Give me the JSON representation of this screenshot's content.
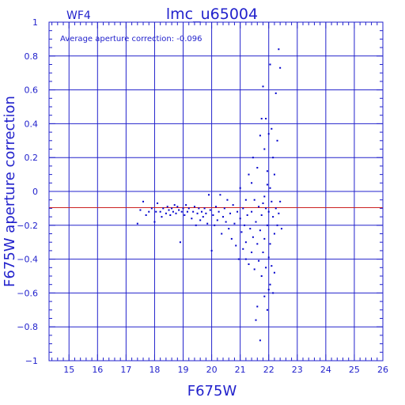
{
  "chart_data": {
    "type": "scatter",
    "title": "lmc_u65004",
    "subtitle": "WF4",
    "annotation": "Average aperture correction: -0.096",
    "xlabel": "F675W",
    "ylabel": "F675W aperture correction",
    "xlim": [
      14.3,
      26
    ],
    "ylim": [
      -1,
      1
    ],
    "xticks": [
      15,
      16,
      17,
      18,
      19,
      20,
      21,
      22,
      23,
      24,
      25,
      26
    ],
    "yticks": [
      1,
      0.8,
      0.6,
      0.4,
      0.2,
      0,
      -0.2,
      -0.4,
      -0.6,
      -0.8,
      -1
    ],
    "ytick_labels": [
      "1",
      "0.8",
      "0.6",
      "0.4",
      "0.2",
      "0",
      "−0.2",
      "−0.4",
      "−0.6",
      "−0.8",
      "−1"
    ],
    "grid": true,
    "reference_line": -0.096,
    "colors": {
      "axes": "#2222cc",
      "points": "#0000cc",
      "reference": "#cc2222"
    },
    "points": [
      [
        17.4,
        -0.19
      ],
      [
        17.5,
        -0.11
      ],
      [
        17.6,
        -0.06
      ],
      [
        17.7,
        -0.14
      ],
      [
        17.8,
        -0.12
      ],
      [
        17.9,
        -0.1
      ],
      [
        18.0,
        -0.18
      ],
      [
        18.05,
        -0.12
      ],
      [
        18.1,
        -0.07
      ],
      [
        18.2,
        -0.12
      ],
      [
        18.25,
        -0.15
      ],
      [
        18.3,
        -0.1
      ],
      [
        18.4,
        -0.13
      ],
      [
        18.45,
        -0.09
      ],
      [
        18.5,
        -0.11
      ],
      [
        18.55,
        -0.14
      ],
      [
        18.6,
        -0.1
      ],
      [
        18.65,
        -0.12
      ],
      [
        18.7,
        -0.08
      ],
      [
        18.75,
        -0.13
      ],
      [
        18.8,
        -0.09
      ],
      [
        18.85,
        -0.11
      ],
      [
        18.9,
        -0.3
      ],
      [
        18.95,
        -0.12
      ],
      [
        19.0,
        -0.1
      ],
      [
        19.05,
        -0.14
      ],
      [
        19.1,
        -0.08
      ],
      [
        19.15,
        -0.12
      ],
      [
        19.2,
        -0.1
      ],
      [
        19.3,
        -0.16
      ],
      [
        19.35,
        -0.12
      ],
      [
        19.4,
        -0.09
      ],
      [
        19.45,
        -0.2
      ],
      [
        19.5,
        -0.13
      ],
      [
        19.55,
        -0.1
      ],
      [
        19.6,
        -0.17
      ],
      [
        19.65,
        -0.12
      ],
      [
        19.7,
        -0.15
      ],
      [
        19.75,
        -0.1
      ],
      [
        19.8,
        -0.13
      ],
      [
        19.85,
        -0.19
      ],
      [
        19.9,
        -0.02
      ],
      [
        19.95,
        -0.11
      ],
      [
        20.0,
        -0.35
      ],
      [
        20.05,
        -0.14
      ],
      [
        20.1,
        -0.2
      ],
      [
        20.15,
        -0.09
      ],
      [
        20.2,
        -0.17
      ],
      [
        20.25,
        -0.12
      ],
      [
        20.3,
        -0.02
      ],
      [
        20.35,
        -0.25
      ],
      [
        20.4,
        -0.15
      ],
      [
        20.45,
        -0.1
      ],
      [
        20.5,
        -0.18
      ],
      [
        20.55,
        -0.05
      ],
      [
        20.6,
        -0.22
      ],
      [
        20.65,
        -0.13
      ],
      [
        20.7,
        -0.28
      ],
      [
        20.75,
        -0.08
      ],
      [
        20.8,
        -0.19
      ],
      [
        20.85,
        -0.32
      ],
      [
        20.9,
        -0.12
      ],
      [
        20.95,
        -0.4
      ],
      [
        21.0,
        -0.16
      ],
      [
        21.0,
        0.02
      ],
      [
        21.05,
        -0.24
      ],
      [
        21.1,
        -0.1
      ],
      [
        21.1,
        -0.34
      ],
      [
        21.15,
        -0.2
      ],
      [
        21.2,
        -0.05
      ],
      [
        21.2,
        -0.3
      ],
      [
        21.25,
        -0.14
      ],
      [
        21.3,
        -0.43
      ],
      [
        21.3,
        0.1
      ],
      [
        21.35,
        -0.22
      ],
      [
        21.4,
        -0.12
      ],
      [
        21.4,
        -0.36
      ],
      [
        21.45,
        0.2
      ],
      [
        21.45,
        -0.27
      ],
      [
        21.5,
        -0.05
      ],
      [
        21.5,
        -0.46
      ],
      [
        21.55,
        -0.18
      ],
      [
        21.6,
        0.14
      ],
      [
        21.6,
        -0.31
      ],
      [
        21.65,
        -0.09
      ],
      [
        21.65,
        -0.41
      ],
      [
        21.7,
        0.33
      ],
      [
        21.7,
        -0.23
      ],
      [
        21.75,
        0.43
      ],
      [
        21.75,
        -0.14
      ],
      [
        21.75,
        -0.5
      ],
      [
        21.8,
        0.62
      ],
      [
        21.8,
        -0.07
      ],
      [
        21.8,
        -0.36
      ],
      [
        21.85,
        0.25
      ],
      [
        21.85,
        -0.28
      ],
      [
        21.85,
        -0.62
      ],
      [
        21.9,
        0.43
      ],
      [
        21.9,
        -0.1
      ],
      [
        21.9,
        -0.45
      ],
      [
        21.95,
        0.12
      ],
      [
        21.95,
        -0.2
      ],
      [
        21.95,
        -0.7
      ],
      [
        22.0,
        0.34
      ],
      [
        22.0,
        -0.12
      ],
      [
        22.0,
        -0.39
      ],
      [
        22.05,
        0.75
      ],
      [
        22.05,
        0.02
      ],
      [
        22.05,
        -0.31
      ],
      [
        22.05,
        -0.55
      ],
      [
        22.1,
        0.37
      ],
      [
        22.1,
        -0.06
      ],
      [
        22.1,
        -0.44
      ],
      [
        22.15,
        0.2
      ],
      [
        22.15,
        -0.15
      ],
      [
        22.15,
        -0.6
      ],
      [
        22.2,
        0.1
      ],
      [
        22.2,
        -0.25
      ],
      [
        22.2,
        -0.48
      ],
      [
        22.25,
        0.58
      ],
      [
        22.25,
        -0.1
      ],
      [
        22.3,
        0.3
      ],
      [
        22.3,
        -0.2
      ],
      [
        22.35,
        0.84
      ],
      [
        22.35,
        -0.13
      ],
      [
        22.4,
        0.73
      ],
      [
        22.4,
        -0.06
      ],
      [
        22.45,
        -0.22
      ],
      [
        21.55,
        -0.76
      ],
      [
        21.7,
        -0.88
      ],
      [
        21.6,
        -0.68
      ],
      [
        21.2,
        -0.4
      ],
      [
        21.4,
        0.05
      ],
      [
        22.0,
        -0.58
      ],
      [
        21.85,
        -0.03
      ],
      [
        21.95,
        0.04
      ]
    ]
  }
}
